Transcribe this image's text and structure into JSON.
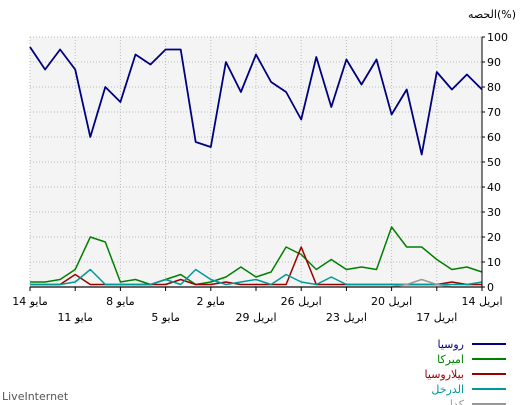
{
  "brand": "LiveInternet",
  "chart_data": {
    "type": "line",
    "ylabel": "الحصه(%)",
    "ylim": [
      0,
      100
    ],
    "yticks": [
      0,
      10,
      20,
      30,
      40,
      50,
      60,
      70,
      80,
      90,
      100
    ],
    "grid": true,
    "legend_position": "bottom-right",
    "x_ticks_row1": [
      "14 مايو",
      "8 مايو",
      "2 مايو",
      "26 ابريل",
      "20 ابريل",
      "14 ابريل"
    ],
    "x_ticks_row2": [
      "11 مايو",
      "5 مايو",
      "29 ابريل",
      "23 ابريل",
      "17 ابريل"
    ],
    "series": [
      {
        "name": "روسيا",
        "color": "#000080",
        "values": [
          96,
          87,
          95,
          87,
          60,
          80,
          74,
          93,
          89,
          95,
          95,
          58,
          56,
          90,
          78,
          93,
          82,
          78,
          67,
          92,
          72,
          91,
          81,
          91,
          69,
          79,
          53,
          86,
          79,
          85,
          79
        ]
      },
      {
        "name": "امیرکا",
        "color": "#008000",
        "values": [
          2,
          2,
          3,
          7,
          20,
          18,
          2,
          3,
          1,
          3,
          5,
          1,
          2,
          4,
          8,
          4,
          6,
          16,
          13,
          7,
          11,
          7,
          8,
          7,
          24,
          16,
          16,
          11,
          7,
          8,
          6
        ]
      },
      {
        "name": "بيلاروسيا",
        "color": "#990000",
        "values": [
          1,
          1,
          1,
          5,
          1,
          1,
          1,
          1,
          1,
          1,
          3,
          1,
          1,
          2,
          1,
          1,
          1,
          1,
          16,
          1,
          1,
          1,
          1,
          1,
          1,
          1,
          1,
          1,
          2,
          1,
          1
        ]
      },
      {
        "name": "الدرخل",
        "color": "#009999",
        "values": [
          1,
          1,
          1,
          2,
          7,
          1,
          1,
          1,
          1,
          3,
          1,
          7,
          3,
          1,
          2,
          3,
          1,
          5,
          2,
          1,
          4,
          1,
          1,
          1,
          1,
          1,
          1,
          1,
          1,
          1,
          2
        ]
      },
      {
        "name": "کدا",
        "color": "#999999",
        "values": [
          0,
          0,
          0,
          0,
          0,
          0,
          0,
          0,
          0,
          0,
          0,
          0,
          0,
          0,
          0,
          0,
          0,
          0,
          0,
          0,
          0,
          0,
          0,
          0,
          0,
          1,
          3,
          1,
          0,
          0,
          0
        ]
      }
    ]
  }
}
